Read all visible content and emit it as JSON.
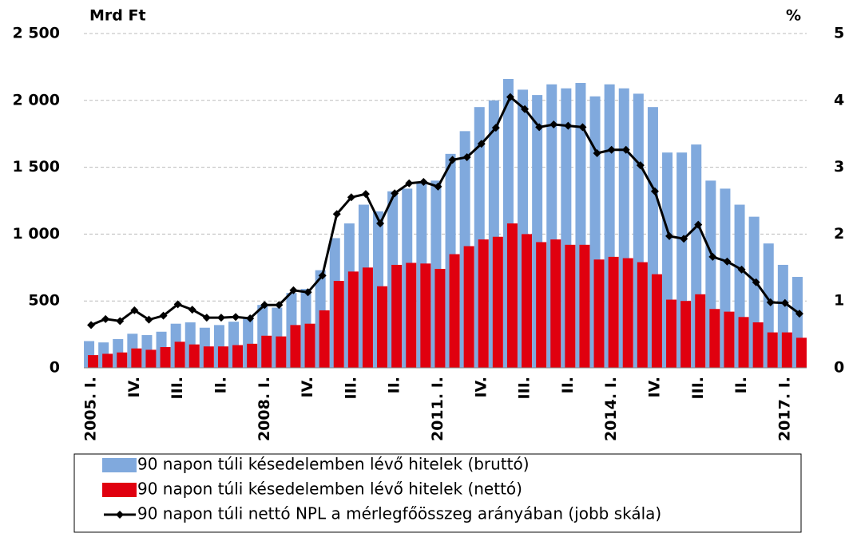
{
  "chart_data": {
    "type": "bar",
    "y_label": "Mrd Ft",
    "y2_label": "%",
    "categories": [
      "2005. I.",
      null,
      null,
      "IV.",
      null,
      null,
      "III.",
      null,
      null,
      "II.",
      null,
      null,
      "2008. I.",
      null,
      null,
      "IV.",
      null,
      null,
      "III.",
      null,
      null,
      "II.",
      null,
      null,
      "2011. I.",
      null,
      null,
      "IV.",
      null,
      null,
      "III.",
      null,
      null,
      "II.",
      null,
      null,
      "2014. I.",
      null,
      null,
      "IV.",
      null,
      null,
      "III.",
      null,
      null,
      "II.",
      null,
      null,
      "2017. I.",
      null
    ],
    "series": [
      {
        "name": "90 napon túli késedelemben lévő hitelek (bruttó)",
        "color": "#80a9dd",
        "values": [
          200,
          190,
          215,
          255,
          245,
          270,
          330,
          340,
          300,
          320,
          345,
          380,
          470,
          450,
          560,
          590,
          730,
          970,
          1080,
          1220,
          1170,
          1320,
          1340,
          1390,
          1400,
          1600,
          1770,
          1950,
          2000,
          2160,
          2080,
          2040,
          2120,
          2090,
          2130,
          2030,
          2120,
          2090,
          2050,
          1950,
          1610,
          1610,
          1670,
          1400,
          1340,
          1220,
          1130,
          930,
          770,
          680
        ]
      },
      {
        "name": "90 napon túli késedelemben lévő hitelek (nettó)",
        "color": "#e0000f",
        "values": [
          95,
          105,
          115,
          145,
          135,
          155,
          195,
          175,
          160,
          160,
          170,
          180,
          240,
          235,
          320,
          330,
          430,
          650,
          720,
          750,
          610,
          770,
          785,
          780,
          740,
          850,
          910,
          960,
          980,
          1080,
          1000,
          940,
          960,
          920,
          920,
          810,
          830,
          820,
          790,
          700,
          510,
          500,
          550,
          440,
          420,
          380,
          340,
          265,
          265,
          225
        ]
      },
      {
        "name": "90 napon túli nettó NPL a mérlegfőösszeg arányában (jobb skála)",
        "color": "#000000",
        "type": "line",
        "axis": "y2",
        "values": [
          0.64,
          0.73,
          0.7,
          0.86,
          0.72,
          0.78,
          0.95,
          0.87,
          0.75,
          0.75,
          0.76,
          0.74,
          0.94,
          0.94,
          1.16,
          1.13,
          1.38,
          2.3,
          2.55,
          2.6,
          2.16,
          2.61,
          2.76,
          2.78,
          2.71,
          3.11,
          3.15,
          3.35,
          3.59,
          4.05,
          3.87,
          3.6,
          3.64,
          3.62,
          3.6,
          3.21,
          3.26,
          3.26,
          3.03,
          2.64,
          1.97,
          1.93,
          2.14,
          1.66,
          1.59,
          1.47,
          1.28,
          0.98,
          0.97,
          0.81
        ]
      }
    ],
    "ylim": [
      0,
      2500
    ],
    "yticks": [
      0,
      {
        "value": 500,
        "label": "500"
      },
      {
        "value": 1000,
        "label": "1 000"
      },
      {
        "value": 1500,
        "label": "1 500"
      },
      {
        "value": 2000,
        "label": "2 000"
      },
      {
        "value": 2500,
        "label": "2 500"
      }
    ],
    "y2lim": [
      0,
      5
    ],
    "y2ticks": [
      0,
      1,
      2,
      3,
      4,
      5
    ],
    "grid": true,
    "legend": "bottom"
  }
}
